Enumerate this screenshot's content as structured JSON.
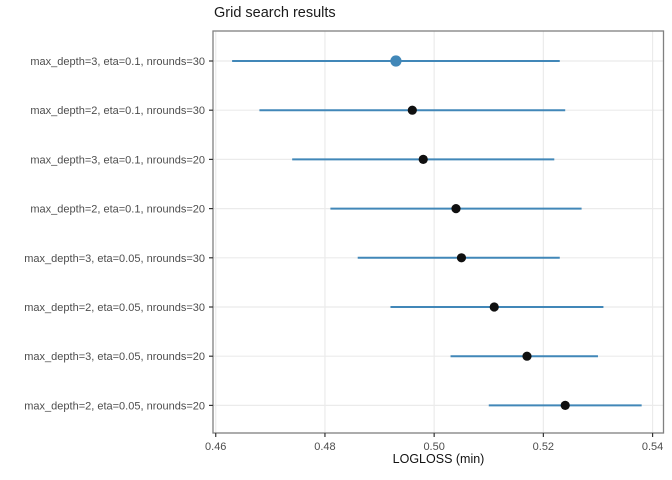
{
  "title": "Grid search results",
  "chart_data": {
    "type": "scatter",
    "subtype": "dot-with-error-bars",
    "orientation": "horizontal",
    "title": "Grid search results",
    "xlabel": "LOGLOSS (min)",
    "ylabel": "",
    "xlim": [
      0.4595,
      0.542
    ],
    "xticks": [
      0.46,
      0.48,
      0.5,
      0.52,
      0.54
    ],
    "grid": "major",
    "legend": "none",
    "points": [
      {
        "label": "max_depth=3, eta=0.1, nrounds=30",
        "value": 0.493,
        "lower": 0.463,
        "upper": 0.523,
        "best": true
      },
      {
        "label": "max_depth=2, eta=0.1, nrounds=30",
        "value": 0.496,
        "lower": 0.468,
        "upper": 0.524,
        "best": false
      },
      {
        "label": "max_depth=3, eta=0.1, nrounds=20",
        "value": 0.498,
        "lower": 0.474,
        "upper": 0.522,
        "best": false
      },
      {
        "label": "max_depth=2, eta=0.1, nrounds=20",
        "value": 0.504,
        "lower": 0.481,
        "upper": 0.527,
        "best": false
      },
      {
        "label": "max_depth=3, eta=0.05, nrounds=30",
        "value": 0.505,
        "lower": 0.486,
        "upper": 0.523,
        "best": false
      },
      {
        "label": "max_depth=2, eta=0.05, nrounds=30",
        "value": 0.511,
        "lower": 0.492,
        "upper": 0.531,
        "best": false
      },
      {
        "label": "max_depth=3, eta=0.05, nrounds=20",
        "value": 0.517,
        "lower": 0.503,
        "upper": 0.53,
        "best": false
      },
      {
        "label": "max_depth=2, eta=0.05, nrounds=20",
        "value": 0.524,
        "lower": 0.51,
        "upper": 0.538,
        "best": false
      }
    ],
    "colors": {
      "interval_line": "#4187b8",
      "point": "#101010",
      "best_point": "#4187b8",
      "gridline": "#ebebeb",
      "panel_border": "#808080",
      "axis_text": "#4d4d4d",
      "tick": "#333333",
      "title_text": "#1a1a1a",
      "background": "#ffffff"
    }
  }
}
